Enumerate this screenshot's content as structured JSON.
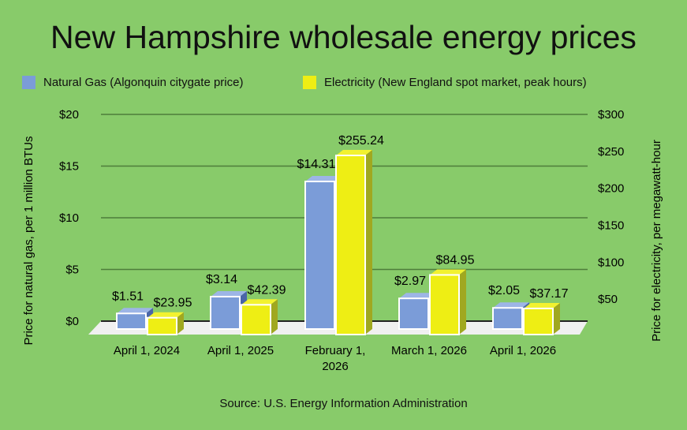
{
  "title": "New Hampshire wholesale energy prices",
  "source": "Source: U.S. Energy Information Administration",
  "chart_data": {
    "type": "bar",
    "title": "New Hampshire wholesale energy prices",
    "categories": [
      "April 1, 2024",
      "April 1, 2025",
      "February 1, 2026",
      "March 1, 2026",
      "April 1, 2026"
    ],
    "series": [
      {
        "name": "Natural Gas (Algonquin citygate price)",
        "axis": "left",
        "color": "#7b9cd8",
        "values": [
          1.51,
          3.14,
          14.31,
          2.97,
          2.05
        ],
        "labels": [
          "$1.51",
          "$3.14",
          "$14.31",
          "$2.97",
          "$2.05"
        ]
      },
      {
        "name": "Electricity (New England spot market, peak hours)",
        "axis": "right",
        "color": "#eeee14",
        "values": [
          23.95,
          42.39,
          255.24,
          84.95,
          37.17
        ],
        "labels": [
          "$23.95",
          "$42.39",
          "$255.24",
          "$84.95",
          "$37.17"
        ]
      }
    ],
    "ylabel": "Price for natural gas, per 1 million BTUs",
    "y2label": "Price for electricity, per megawatt-hour",
    "ylim": [
      0,
      20
    ],
    "y2lim": [
      0,
      300
    ],
    "yticks": [
      "$0",
      "$5",
      "$10",
      "$15",
      "$20"
    ],
    "y2ticks": [
      "$50",
      "$100",
      "$150",
      "$200",
      "$250",
      "$300"
    ],
    "grid": true,
    "legend": "top"
  }
}
